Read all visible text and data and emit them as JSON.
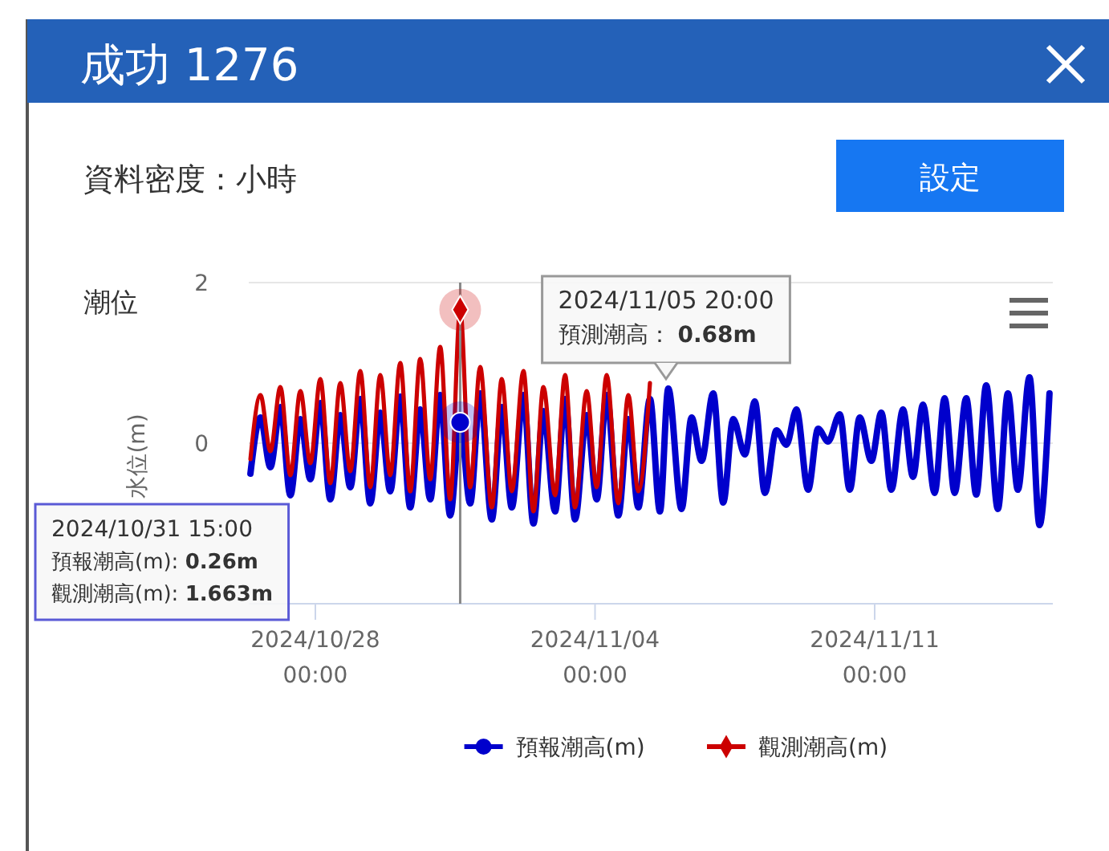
{
  "chart_data": {
    "type": "line",
    "title": "成功 1276",
    "subtitle": "資料密度：小時",
    "ylabel": "水位(m)",
    "annotations": [
      "潮位",
      "設定",
      "2024/10/31 15:00\n預報潮高(m): 0.26m\n觀測潮高(m): 1.663m",
      "2024/11/05 20:00\n預測潮高： 0.68m"
    ],
    "xlim": [
      "2024-10-26T08:00",
      "2024-11-15T11:00"
    ],
    "xticks": [
      {
        "value": "2024-10-28T00:00",
        "label": "2024/10/28\n00:00"
      },
      {
        "value": "2024-11-04T00:00",
        "label": "2024/11/04\n00:00"
      },
      {
        "value": "2024-11-11T00:00",
        "label": "2024/11/11\n00:00"
      }
    ],
    "ylim": [
      -2,
      2
    ],
    "yticks": [
      {
        "value": -2,
        "label": null
      },
      0,
      2
    ],
    "grid": "y",
    "legend": "bottom",
    "ref_lines": [
      {
        "axis": "x",
        "value": "2024-10-31T15:00",
        "label": null,
        "color": "#888888"
      }
    ],
    "series": [
      {
        "name": "預報潮高(m)",
        "color": "#0000cc",
        "x": [
          "2024-10-26T09:00",
          "2024-10-26T15:00",
          "2024-10-26T21:00",
          "2024-10-27T03:00",
          "2024-10-27T09:00",
          "2024-10-27T15:00",
          "2024-10-27T21:00",
          "2024-10-28T03:00",
          "2024-10-28T09:00",
          "2024-10-28T15:00",
          "2024-10-28T21:00",
          "2024-10-29T03:00",
          "2024-10-29T09:00",
          "2024-10-29T15:00",
          "2024-10-29T21:00",
          "2024-10-30T03:00",
          "2024-10-30T09:00",
          "2024-10-30T15:00",
          "2024-10-30T21:00",
          "2024-10-31T03:00",
          "2024-10-31T09:00",
          "2024-10-31T15:00",
          "2024-10-31T21:00",
          "2024-11-01T03:00",
          "2024-11-01T10:00",
          "2024-11-01T16:00",
          "2024-11-01T22:00",
          "2024-11-02T05:00",
          "2024-11-02T11:00",
          "2024-11-02T17:00",
          "2024-11-03T00:00",
          "2024-11-03T06:00",
          "2024-11-03T12:00",
          "2024-11-03T19:00",
          "2024-11-04T01:00",
          "2024-11-04T07:00",
          "2024-11-04T14:00",
          "2024-11-04T20:00",
          "2024-11-05T02:00",
          "2024-11-05T09:00",
          "2024-11-05T15:00",
          "2024-11-05T20:00",
          "2024-11-06T04:00",
          "2024-11-06T10:00",
          "2024-11-06T16:00",
          "2024-11-06T23:00",
          "2024-11-07T05:00",
          "2024-11-07T11:00",
          "2024-11-07T18:00",
          "2024-11-08T00:00",
          "2024-11-08T06:00",
          "2024-11-08T13:00",
          "2024-11-08T19:00",
          "2024-11-09T01:00",
          "2024-11-09T08:00",
          "2024-11-09T14:00",
          "2024-11-09T20:00",
          "2024-11-10T03:00",
          "2024-11-10T09:00",
          "2024-11-10T15:00",
          "2024-11-10T22:00",
          "2024-11-11T04:00",
          "2024-11-11T10:00",
          "2024-11-11T17:00",
          "2024-11-11T23:00",
          "2024-11-12T05:00",
          "2024-11-12T12:00",
          "2024-11-12T18:00",
          "2024-11-13T00:00",
          "2024-11-13T07:00",
          "2024-11-13T13:00",
          "2024-11-13T19:00",
          "2024-11-14T02:00",
          "2024-11-14T08:00",
          "2024-11-14T14:00",
          "2024-11-14T21:00",
          "2024-11-15T03:00",
          "2024-11-15T09:00"
        ],
        "values": [
          -0.38,
          0.32,
          -0.3,
          0.45,
          -0.65,
          0.3,
          -0.45,
          0.5,
          -0.7,
          0.35,
          -0.55,
          0.55,
          -0.75,
          0.38,
          -0.6,
          0.58,
          -0.8,
          0.42,
          -0.7,
          0.6,
          -0.9,
          0.26,
          -0.75,
          0.62,
          -0.95,
          0.45,
          -0.8,
          0.6,
          -1.0,
          0.4,
          -0.85,
          0.55,
          -0.95,
          0.35,
          -0.7,
          0.6,
          -0.9,
          0.3,
          -0.8,
          0.55,
          -0.85,
          0.68,
          -0.82,
          0.32,
          -0.22,
          0.62,
          -0.74,
          0.3,
          -0.14,
          0.52,
          -0.62,
          0.16,
          -0.02,
          0.42,
          -0.58,
          0.18,
          0.02,
          0.36,
          -0.58,
          0.32,
          -0.22,
          0.38,
          -0.58,
          0.42,
          -0.42,
          0.48,
          -0.62,
          0.56,
          -0.62,
          0.56,
          -0.64,
          0.72,
          -0.82,
          0.62,
          -0.58,
          0.82,
          -1.02,
          0.62
        ]
      },
      {
        "name": "觀測潮高(m)",
        "color": "#cc0000",
        "x": [
          "2024-10-26T09:00",
          "2024-10-26T15:00",
          "2024-10-26T21:00",
          "2024-10-27T03:00",
          "2024-10-27T09:00",
          "2024-10-27T15:00",
          "2024-10-27T21:00",
          "2024-10-28T03:00",
          "2024-10-28T09:00",
          "2024-10-28T15:00",
          "2024-10-28T21:00",
          "2024-10-29T03:00",
          "2024-10-29T09:00",
          "2024-10-29T15:00",
          "2024-10-29T21:00",
          "2024-10-30T03:00",
          "2024-10-30T09:00",
          "2024-10-30T15:00",
          "2024-10-30T21:00",
          "2024-10-31T03:00",
          "2024-10-31T09:00",
          "2024-10-31T15:00",
          "2024-10-31T21:00",
          "2024-11-01T03:00",
          "2024-11-01T10:00",
          "2024-11-01T16:00",
          "2024-11-01T22:00",
          "2024-11-02T05:00",
          "2024-11-02T11:00",
          "2024-11-02T17:00",
          "2024-11-03T00:00",
          "2024-11-03T06:00",
          "2024-11-03T12:00",
          "2024-11-03T19:00",
          "2024-11-04T01:00",
          "2024-11-04T07:00",
          "2024-11-04T14:00",
          "2024-11-04T20:00",
          "2024-11-05T02:00",
          "2024-11-05T09:00"
        ],
        "values": [
          -0.2,
          0.6,
          -0.1,
          0.7,
          -0.4,
          0.65,
          -0.25,
          0.8,
          -0.5,
          0.75,
          -0.35,
          0.9,
          -0.55,
          0.85,
          -0.4,
          1.0,
          -0.6,
          1.05,
          -0.45,
          1.2,
          -0.7,
          1.663,
          -0.55,
          0.95,
          -0.8,
          0.8,
          -0.6,
          0.9,
          -0.85,
          0.7,
          -0.65,
          0.85,
          -0.8,
          0.65,
          -0.55,
          0.85,
          -0.75,
          0.6,
          -0.6,
          0.75
        ]
      }
    ]
  }
}
